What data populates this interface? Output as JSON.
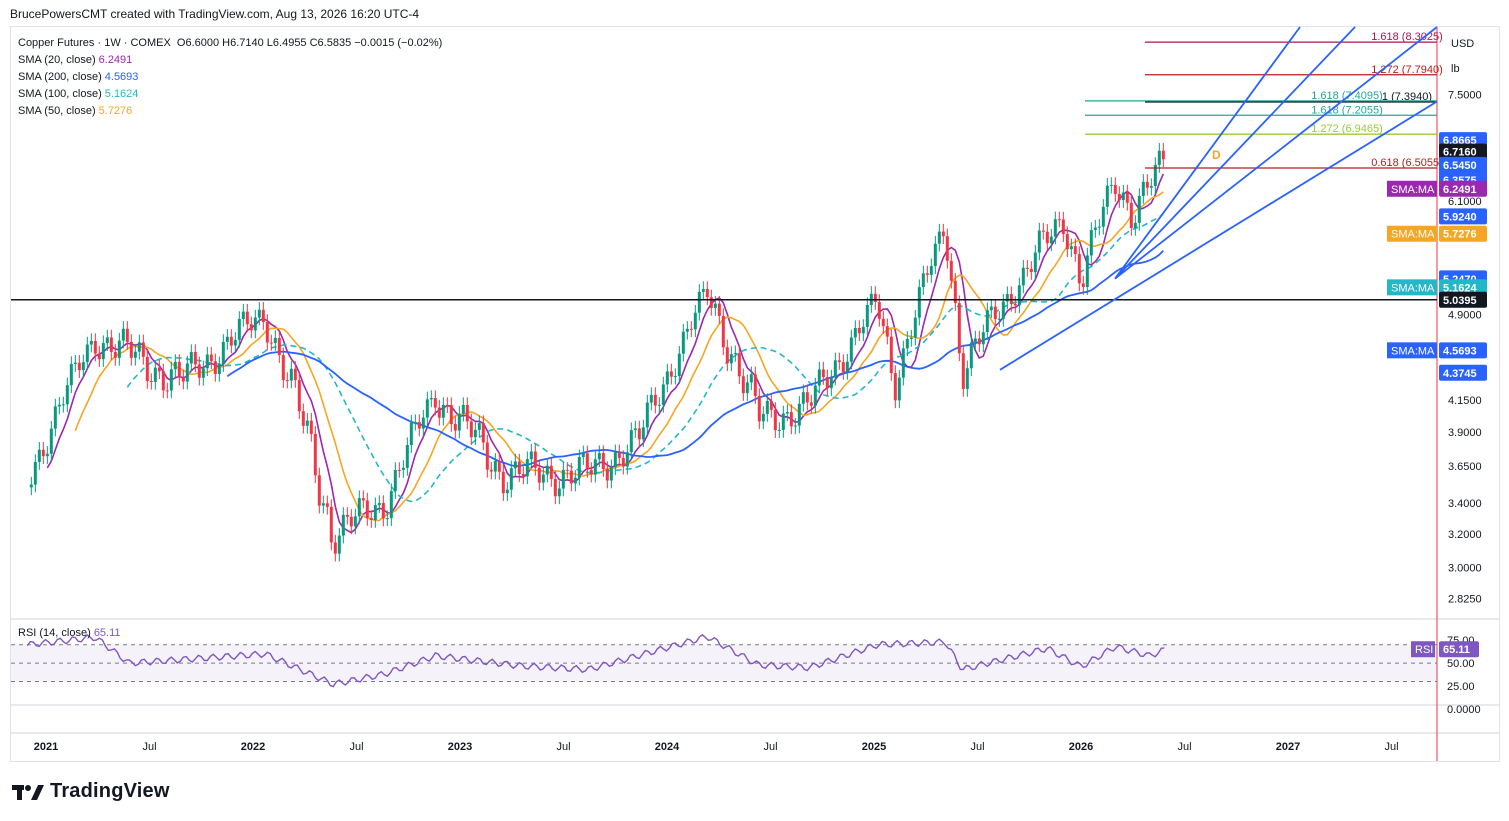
{
  "header": {
    "attribution": "BrucePowersCMT created with TradingView.com, Aug 13, 2026 16:20 UTC-4"
  },
  "legend": {
    "symbol_line": "Copper Futures · 1W · COMEX",
    "ohlc": "O6.6000 H6.7140 L6.4955 C6.5835 −0.0015 (−0.02%)",
    "sma20_label": "SMA (20, close)",
    "sma20_value": "6.2491",
    "sma200_label": "SMA (200, close)",
    "sma200_value": "4.5693",
    "sma100_label": "SMA (100, close)",
    "sma100_value": "5.1624",
    "sma50_label": "SMA (50, close)",
    "sma50_value": "5.7276"
  },
  "rsi_legend": {
    "label": "RSI (14, close)",
    "value": "65.11"
  },
  "axis": {
    "currency": "USD",
    "unit": "lb"
  },
  "colors": {
    "sma20": "#9c27b0",
    "sma50": "#f5a623",
    "sma100": "#22b8c7",
    "sma200": "#2962ff",
    "up": "#089981",
    "down": "#f23645",
    "rsi": "#7e57c2",
    "fib_red": "#b71c1c",
    "fib_magenta": "#ad1457",
    "fib_teal": "#26a69a",
    "fib_lime": "#9acd32"
  },
  "brand": {
    "name": "TradingView"
  },
  "chart_data": {
    "type": "candlestick",
    "title": "Copper Futures · 1W · COMEX",
    "y_scale": "log",
    "ylim": [
      2.72,
      8.55
    ],
    "price_ticks": [
      "7.5000",
      "6.1000",
      "4.9000",
      "4.1500",
      "3.9000",
      "3.6500",
      "3.4000",
      "3.2000",
      "3.0000",
      "2.8250"
    ],
    "price_tags": [
      {
        "value": "6.8665",
        "type": "pill",
        "color": "#2962ff"
      },
      {
        "value": "6.7160",
        "type": "pill",
        "color": "#131722"
      },
      {
        "value": "6.5450",
        "type": "pill",
        "color": "#2962ff"
      },
      {
        "value": "6.3925",
        "type": "pill",
        "color": "#2962ff"
      },
      {
        "value": "6.3575",
        "type": "pill",
        "color": "#2962ff"
      },
      {
        "value": "6.2491",
        "type": "ma",
        "color": "#9c27b0",
        "label": "SMA:MA"
      },
      {
        "value": "5.9240",
        "type": "pill",
        "color": "#2962ff"
      },
      {
        "value": "5.7276",
        "type": "ma",
        "color": "#f5a623",
        "label": "SMA:MA"
      },
      {
        "value": "5.2535",
        "type": "pill",
        "color": "#2962ff"
      },
      {
        "value": "5.2470",
        "type": "pill",
        "color": "#2962ff"
      },
      {
        "value": "5.1624",
        "type": "ma",
        "color": "#22b8c7",
        "label": "SMA:MA"
      },
      {
        "value": "5.0395",
        "type": "pill",
        "color": "#131722"
      },
      {
        "value": "4.5693",
        "type": "ma",
        "color": "#2962ff",
        "label": "SMA:MA"
      },
      {
        "value": "4.3745",
        "type": "pill",
        "color": "#2962ff"
      }
    ],
    "x_ticks": [
      "2021",
      "Jul",
      "2022",
      "Jul",
      "2023",
      "Jul",
      "2024",
      "Jul",
      "2025",
      "Jul",
      "2026",
      "Jul",
      "2027",
      "Jul"
    ],
    "horizontal_line": 5.0395,
    "fib_levels": [
      {
        "label": "1.618 (8.3025)",
        "value": 8.3025,
        "color": "#ad1457"
      },
      {
        "label": "1.272 (7.7940)",
        "value": 7.794,
        "color": "#b71c1c"
      },
      {
        "label": "1 (7.3940)",
        "value": 7.394,
        "color": "#131722"
      },
      {
        "label": "1.618 (7.4095)",
        "value": 7.4095,
        "color": "#26a69a"
      },
      {
        "label": "1.618 (7.2055)",
        "value": 7.2055,
        "color": "#26a69a"
      },
      {
        "label": "1.272 (6.9465)",
        "value": 6.9465,
        "color": "#9acd32"
      },
      {
        "label": "0.618 (6.5055)",
        "value": 6.5055,
        "color": "#b71c1c"
      }
    ],
    "pattern_label": "D",
    "key_points": [
      {
        "date": "2021-01",
        "price": 3.55
      },
      {
        "date": "2021-05",
        "price": 4.7
      },
      {
        "date": "2021-10",
        "price": 4.3
      },
      {
        "date": "2022-03",
        "price": 4.9
      },
      {
        "date": "2022-07",
        "price": 3.2
      },
      {
        "date": "2022-10",
        "price": 3.4
      },
      {
        "date": "2023-01",
        "price": 4.2
      },
      {
        "date": "2023-05",
        "price": 3.6
      },
      {
        "date": "2023-10",
        "price": 3.6
      },
      {
        "date": "2024-01",
        "price": 3.85
      },
      {
        "date": "2024-05",
        "price": 5.1
      },
      {
        "date": "2024-08",
        "price": 4.0
      },
      {
        "date": "2024-11",
        "price": 4.1
      },
      {
        "date": "2025-03",
        "price": 5.0
      },
      {
        "date": "2025-04",
        "price": 4.3
      },
      {
        "date": "2025-07",
        "price": 5.8
      },
      {
        "date": "2025-08",
        "price": 4.4
      },
      {
        "date": "2025-12",
        "price": 5.4
      },
      {
        "date": "2026-02",
        "price": 5.9
      },
      {
        "date": "2026-03",
        "price": 5.25
      },
      {
        "date": "2026-05",
        "price": 6.35
      },
      {
        "date": "2026-06",
        "price": 6.0
      },
      {
        "date": "2026-08",
        "price": 6.5835
      }
    ],
    "last": {
      "open": 6.6,
      "high": 6.714,
      "low": 6.4955,
      "close": 6.5835,
      "change": -0.0015,
      "change_pct": -0.02
    },
    "sma": {
      "sma20": 6.2491,
      "sma50": 5.7276,
      "sma100": 5.1624,
      "sma200": 4.5693
    },
    "rsi": {
      "period": 14,
      "last": 65.11,
      "ticks": [
        "75.00",
        "50.00",
        "25.00",
        "0.0000"
      ],
      "bands": [
        70,
        30
      ],
      "key_points": [
        {
          "date": "2021-01",
          "value": 70
        },
        {
          "date": "2021-05",
          "value": 78
        },
        {
          "date": "2021-07",
          "value": 50
        },
        {
          "date": "2022-03",
          "value": 60
        },
        {
          "date": "2022-07",
          "value": 27
        },
        {
          "date": "2022-10",
          "value": 38
        },
        {
          "date": "2023-01",
          "value": 58
        },
        {
          "date": "2023-06",
          "value": 47
        },
        {
          "date": "2023-10",
          "value": 43
        },
        {
          "date": "2024-05",
          "value": 79
        },
        {
          "date": "2024-08",
          "value": 48
        },
        {
          "date": "2024-11",
          "value": 45
        },
        {
          "date": "2025-03",
          "value": 70
        },
        {
          "date": "2025-07",
          "value": 73
        },
        {
          "date": "2025-08",
          "value": 43
        },
        {
          "date": "2026-01",
          "value": 66
        },
        {
          "date": "2026-03",
          "value": 46
        },
        {
          "date": "2026-05",
          "value": 68
        },
        {
          "date": "2026-07",
          "value": 58
        },
        {
          "date": "2026-08",
          "value": 65.11
        }
      ]
    }
  }
}
